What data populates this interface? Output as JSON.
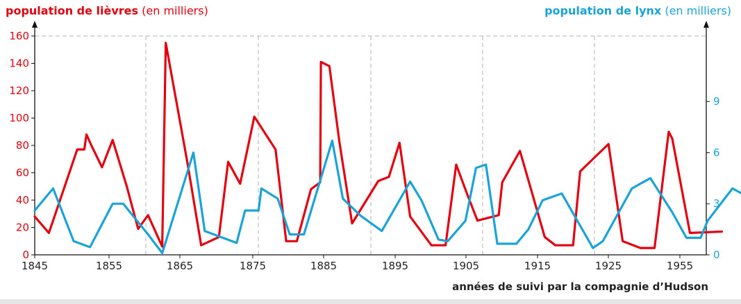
{
  "chart_data": {
    "type": "line",
    "title_left": {
      "bold": "population de lièvres",
      "normal": " (en milliers)"
    },
    "title_right": {
      "bold": "population de lynx",
      "normal": " (en milliers)"
    },
    "xlabel": "années de suivi par la compagnie d’Hudson",
    "x_ticks": [
      "1845",
      "1855",
      "1865",
      "1875",
      "1885",
      "1895",
      "1905",
      "1915",
      "1925",
      "1955"
    ],
    "y_left_ticks": [
      "0",
      "20",
      "40",
      "60",
      "80",
      "100",
      "120",
      "140",
      "160"
    ],
    "y_right_ticks": [
      "0",
      "3",
      "6",
      "9"
    ],
    "y_left_range": [
      0,
      160
    ],
    "y_right_range": [
      0,
      13
    ],
    "colors": {
      "hares": "#e3000f",
      "lynx": "#1aa3da",
      "grid": "#b3b3b3",
      "axis": "#111111"
    },
    "series": [
      {
        "color": "#e3000f",
        "axis": "left",
        "points": [
          [
            1845,
            28
          ],
          [
            1847,
            16
          ],
          [
            1851,
            77
          ],
          [
            1852,
            77
          ],
          [
            1852.3,
            88
          ],
          [
            1853,
            80
          ],
          [
            1854.5,
            64
          ],
          [
            1856,
            84
          ],
          [
            1858,
            50
          ],
          [
            1859.6,
            19
          ],
          [
            1861,
            29
          ],
          [
            1863,
            6
          ],
          [
            1863.5,
            155
          ],
          [
            1866.5,
            69
          ],
          [
            1868.5,
            7
          ],
          [
            1871,
            13
          ],
          [
            1872.3,
            68
          ],
          [
            1874,
            52
          ],
          [
            1876,
            101
          ],
          [
            1879,
            77
          ],
          [
            1880.5,
            10
          ],
          [
            1882,
            10
          ],
          [
            1884,
            48
          ],
          [
            1885.3,
            53
          ],
          [
            1885.4,
            141
          ],
          [
            1886.6,
            138
          ],
          [
            1888,
            83
          ],
          [
            1889.8,
            23
          ],
          [
            1893.5,
            54
          ],
          [
            1895,
            57
          ],
          [
            1896.5,
            82
          ],
          [
            1898,
            28
          ],
          [
            1901,
            7
          ],
          [
            1903,
            7
          ],
          [
            1904.5,
            66
          ],
          [
            1906,
            45
          ],
          [
            1907.5,
            25
          ],
          [
            1910.5,
            29
          ],
          [
            1911,
            53
          ],
          [
            1913.5,
            76
          ],
          [
            1917,
            13
          ],
          [
            1918.5,
            7
          ],
          [
            1921,
            7
          ],
          [
            1922,
            61
          ],
          [
            1926,
            81
          ],
          [
            1928,
            10
          ],
          [
            1930.5,
            5
          ],
          [
            1932.5,
            5
          ],
          [
            1934.5,
            90
          ],
          [
            1935,
            85
          ],
          [
            1937.5,
            16
          ],
          [
            1942,
            17
          ]
        ]
      },
      {
        "color": "#1aa3da",
        "axis": "right",
        "points": [
          [
            1845,
            2.6
          ],
          [
            1847.6,
            3.9
          ],
          [
            1850.5,
            0.8
          ],
          [
            1852.8,
            0.45
          ],
          [
            1856,
            3.0
          ],
          [
            1857.5,
            3.0
          ],
          [
            1861,
            1.2
          ],
          [
            1863,
            0.1
          ],
          [
            1867.4,
            6.0
          ],
          [
            1869,
            1.4
          ],
          [
            1873.5,
            0.7
          ],
          [
            1874.7,
            2.6
          ],
          [
            1876.6,
            2.6
          ],
          [
            1877,
            3.9
          ],
          [
            1879.3,
            3.3
          ],
          [
            1881,
            1.2
          ],
          [
            1883,
            1.2
          ],
          [
            1887,
            6.7
          ],
          [
            1888.5,
            3.3
          ],
          [
            1891,
            2.3
          ],
          [
            1894,
            1.4
          ],
          [
            1898,
            4.3
          ],
          [
            1899.6,
            3.2
          ],
          [
            1902,
            0.9
          ],
          [
            1903.3,
            0.8
          ],
          [
            1905.8,
            2.0
          ],
          [
            1907.3,
            5.1
          ],
          [
            1908.7,
            5.3
          ],
          [
            1910.3,
            0.65
          ],
          [
            1913,
            0.65
          ],
          [
            1914.7,
            1.5
          ],
          [
            1916.7,
            3.2
          ],
          [
            1919.4,
            3.6
          ],
          [
            1923.8,
            0.4
          ],
          [
            1925.2,
            0.8
          ],
          [
            1929.3,
            3.9
          ],
          [
            1931.9,
            4.5
          ],
          [
            1935,
            2.5
          ],
          [
            1937,
            1.0
          ],
          [
            1939,
            1.0
          ],
          [
            1940,
            2.0
          ],
          [
            1943.5,
            3.9
          ],
          [
            1947,
            3.1
          ]
        ]
      }
    ]
  }
}
